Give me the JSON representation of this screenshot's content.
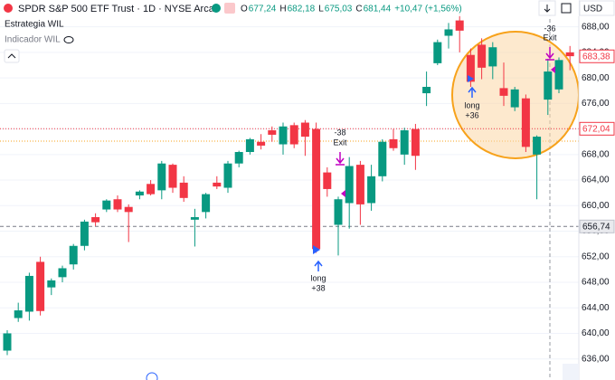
{
  "chart_data": {
    "type": "candlestick",
    "title": "SPDR S&P 500 ETF Trust · 1D · NYSE Arca",
    "quote": [
      {
        "key": "O",
        "value": "677,24"
      },
      {
        "key": "H",
        "value": "682,18"
      },
      {
        "key": "L",
        "value": "675,03"
      },
      {
        "key": "C",
        "value": "681,44"
      }
    ],
    "change": "+10,47 (+1,56%)",
    "indicators": [
      "Estrategia WIL",
      "Indicador WIL"
    ],
    "currency": "USD",
    "up_color": "#089981",
    "down_color": "#f23645",
    "open": [
      637.3,
      642.4,
      643.4,
      651.2,
      647.2,
      648.8,
      650.8,
      653.7,
      658.2,
      659.4,
      661.0,
      659.8,
      661.6,
      663.4,
      662.4,
      666.4,
      663.6,
      657.8,
      659.0,
      663.6,
      662.8,
      666.6,
      668.4,
      670.0,
      671.8,
      669.6,
      672.6,
      673.0,
      672.0,
      665.2,
      657.0,
      660.4,
      666.4,
      660.4,
      664.6,
      670.4,
      668.0,
      672.0,
      677.6,
      682.3,
      686.6,
      689.0,
      683.6,
      685.2,
      681.8,
      678.4,
      675.4,
      676.8,
      668.0,
      676.6,
      678.2,
      684.0
    ],
    "high": [
      640.5,
      644.8,
      649.5,
      652.0,
      648.6,
      650.6,
      654.0,
      657.8,
      658.8,
      661.0,
      661.6,
      660.2,
      662.4,
      664.0,
      667.0,
      666.6,
      664.6,
      659.5,
      662.0,
      664.6,
      667.0,
      668.6,
      670.6,
      671.2,
      672.4,
      673.0,
      673.0,
      673.4,
      673.0,
      666.0,
      661.4,
      667.6,
      667.0,
      666.4,
      670.4,
      672.0,
      672.2,
      672.8,
      681.0,
      686.0,
      688.6,
      690.0,
      684.6,
      686.2,
      685.6,
      682.4,
      678.6,
      677.4,
      671.0,
      683.0,
      683.2,
      685.0
    ],
    "low": [
      636.6,
      641.8,
      642.0,
      642.8,
      646.0,
      648.0,
      650.0,
      653.0,
      656.8,
      659.0,
      659.0,
      654.3,
      661.0,
      661.6,
      661.0,
      662.0,
      660.6,
      653.6,
      658.0,
      662.6,
      662.0,
      666.0,
      668.0,
      668.8,
      670.0,
      668.0,
      669.0,
      667.8,
      652.6,
      661.4,
      652.2,
      656.4,
      657.0,
      659.2,
      663.8,
      668.6,
      666.4,
      665.6,
      675.6,
      682.0,
      684.6,
      684.0,
      678.6,
      679.8,
      679.8,
      675.6,
      674.8,
      668.4,
      661.0,
      674.2,
      677.6,
      681.2
    ],
    "close": [
      640.0,
      643.6,
      649.0,
      643.5,
      648.3,
      650.2,
      653.7,
      657.5,
      657.4,
      660.8,
      659.4,
      659.0,
      662.2,
      661.8,
      666.6,
      662.8,
      661.2,
      658.2,
      661.8,
      663.0,
      666.6,
      668.4,
      670.4,
      669.4,
      671.1,
      672.4,
      669.6,
      670.8,
      653.2,
      662.6,
      661.0,
      666.2,
      660.2,
      664.6,
      670.0,
      669.0,
      671.8,
      667.8,
      678.6,
      685.6,
      687.6,
      687.4,
      679.4,
      681.6,
      684.8,
      677.2,
      678.2,
      669.2,
      670.8,
      681.0,
      682.8,
      683.4
    ],
    "ylim": [
      632.7,
      692.2
    ],
    "yticks": [
      {
        "value": 636,
        "label": "636,00"
      },
      {
        "value": 640,
        "label": "640,00"
      },
      {
        "value": 644,
        "label": "644,00"
      },
      {
        "value": 648,
        "label": "648,00"
      },
      {
        "value": 652,
        "label": "652,00"
      },
      {
        "value": 656,
        "label": "656,00"
      },
      {
        "value": 660,
        "label": "660,00"
      },
      {
        "value": 664,
        "label": "664,00"
      },
      {
        "value": 668,
        "label": "668,00"
      },
      {
        "value": 672,
        "label": "672,00"
      },
      {
        "value": 676,
        "label": "676,00"
      },
      {
        "value": 680,
        "label": "680,00"
      },
      {
        "value": 684,
        "label": "684,00"
      },
      {
        "value": 688,
        "label": "688,00"
      }
    ],
    "grid": true,
    "price_lines": [
      {
        "value": 683.38,
        "label": "683,38",
        "color": "#f23645"
      },
      {
        "value": 672.04,
        "label": "672,04",
        "color": "#f23645"
      },
      {
        "value": 656.74,
        "label": "656,74",
        "color": "#787b86"
      }
    ],
    "annotations": [
      {
        "lines": [
          "long",
          "+38"
        ]
      },
      {
        "lines": [
          "-38",
          "Exit"
        ]
      },
      {
        "lines": [
          "long",
          "+36"
        ]
      },
      {
        "lines": [
          "-36",
          "Exit"
        ]
      }
    ]
  }
}
